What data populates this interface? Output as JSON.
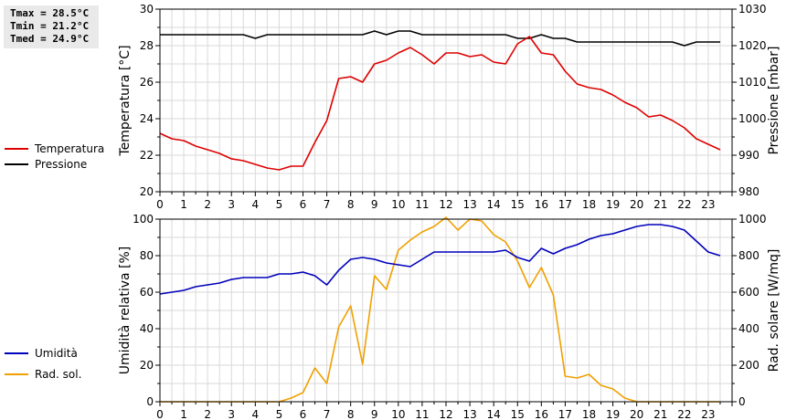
{
  "stats": {
    "tmax": "Tmax = 28.5°C",
    "tmin": "Tmin = 21.2°C",
    "tmed": "Tmed = 24.9°C"
  },
  "colors": {
    "temperature": "#dd0000",
    "pressure": "#000000",
    "humidity": "#0000bb",
    "radiation": "#f0a000",
    "grid": "#d9d9d9"
  },
  "chart_data": [
    {
      "type": "line",
      "xlim": [
        0,
        24
      ],
      "x_ticks": [
        "0",
        "1",
        "2",
        "3",
        "4",
        "5",
        "6",
        "7",
        "8",
        "9",
        "10",
        "11",
        "12",
        "13",
        "14",
        "15",
        "16",
        "17",
        "18",
        "19",
        "20",
        "21",
        "22",
        "23"
      ],
      "x": [
        0,
        0.5,
        1,
        1.5,
        2,
        2.5,
        3,
        3.5,
        4,
        4.5,
        5,
        5.5,
        6,
        6.5,
        7,
        7.5,
        8,
        8.5,
        9,
        9.5,
        10,
        10.5,
        11,
        11.5,
        12,
        12.5,
        13,
        13.5,
        14,
        14.5,
        15,
        15.5,
        16,
        16.5,
        17,
        17.5,
        18,
        18.5,
        19,
        19.5,
        20,
        20.5,
        21,
        21.5,
        22,
        22.5,
        23,
        23.5
      ],
      "ylabel": "Temperatura [°C]",
      "y2label": "Pressione [mbar]",
      "ylim": [
        20,
        30
      ],
      "y_ticks": [
        "20",
        "22",
        "24",
        "26",
        "28",
        "30"
      ],
      "y2lim": [
        980,
        1030
      ],
      "y2_ticks": [
        "980",
        "990",
        "1000",
        "1010",
        "1020",
        "1030"
      ],
      "grid": true,
      "legend": "left",
      "series": [
        {
          "name": "Temperatura",
          "axis": "left",
          "values": [
            23.2,
            22.9,
            22.8,
            22.5,
            22.3,
            22.1,
            21.8,
            21.7,
            21.5,
            21.3,
            21.2,
            21.4,
            21.4,
            22.7,
            23.9,
            26.2,
            26.3,
            26.0,
            27.0,
            27.2,
            27.6,
            27.9,
            27.5,
            27.0,
            27.6,
            27.6,
            27.4,
            27.5,
            27.1,
            27.0,
            28.1,
            28.5,
            27.6,
            27.5,
            26.6,
            25.9,
            25.7,
            25.6,
            25.3,
            24.9,
            24.6,
            24.1,
            24.2,
            23.9,
            23.5,
            22.9,
            22.6,
            22.3
          ]
        },
        {
          "name": "Pressione",
          "axis": "right",
          "values": [
            1023,
            1023,
            1023,
            1023,
            1023,
            1023,
            1023,
            1023,
            1022,
            1023,
            1023,
            1023,
            1023,
            1023,
            1023,
            1023,
            1023,
            1023,
            1024,
            1023,
            1024,
            1024,
            1023,
            1023,
            1023,
            1023,
            1023,
            1023,
            1023,
            1023,
            1022,
            1022,
            1023,
            1022,
            1022,
            1021,
            1021,
            1021,
            1021,
            1021,
            1021,
            1021,
            1021,
            1021,
            1020,
            1021,
            1021,
            1021
          ]
        }
      ]
    },
    {
      "type": "line",
      "xlim": [
        0,
        24
      ],
      "x_ticks": [
        "0",
        "1",
        "2",
        "3",
        "4",
        "5",
        "6",
        "7",
        "8",
        "9",
        "10",
        "11",
        "12",
        "13",
        "14",
        "15",
        "16",
        "17",
        "18",
        "19",
        "20",
        "21",
        "22",
        "23"
      ],
      "x": [
        0,
        0.5,
        1,
        1.5,
        2,
        2.5,
        3,
        3.5,
        4,
        4.5,
        5,
        5.5,
        6,
        6.5,
        7,
        7.5,
        8,
        8.5,
        9,
        9.5,
        10,
        10.5,
        11,
        11.5,
        12,
        12.5,
        13,
        13.5,
        14,
        14.5,
        15,
        15.5,
        16,
        16.5,
        17,
        17.5,
        18,
        18.5,
        19,
        19.5,
        20,
        20.5,
        21,
        21.5,
        22,
        22.5,
        23,
        23.5
      ],
      "ylabel": "Umidità relativa [%]",
      "y2label": "Rad. solare [W/mq]",
      "ylim": [
        0,
        100
      ],
      "y_ticks": [
        "0",
        "20",
        "40",
        "60",
        "80",
        "100"
      ],
      "y2lim": [
        0,
        1000
      ],
      "y2_ticks": [
        "0",
        "200",
        "400",
        "600",
        "800",
        "1000"
      ],
      "grid": true,
      "legend": "left",
      "series": [
        {
          "name": "Umidità",
          "axis": "left",
          "values": [
            59,
            60,
            61,
            63,
            64,
            65,
            67,
            68,
            68,
            68,
            70,
            70,
            71,
            69,
            64,
            72,
            78,
            79,
            78,
            76,
            75,
            74,
            78,
            82,
            82,
            82,
            82,
            82,
            82,
            83,
            79,
            77,
            84,
            81,
            84,
            86,
            89,
            91,
            92,
            94,
            96,
            97,
            97,
            96,
            94,
            88,
            82,
            80
          ]
        },
        {
          "name": "Rad. sol.",
          "axis": "right",
          "values": [
            0,
            0,
            0,
            0,
            0,
            0,
            0,
            0,
            0,
            0,
            0,
            20,
            50,
            185,
            100,
            410,
            525,
            205,
            690,
            615,
            830,
            885,
            930,
            960,
            1010,
            940,
            1000,
            990,
            915,
            875,
            770,
            625,
            735,
            585,
            140,
            130,
            150,
            90,
            70,
            20,
            0,
            0,
            0,
            0,
            0,
            0,
            0,
            0
          ]
        }
      ]
    }
  ]
}
